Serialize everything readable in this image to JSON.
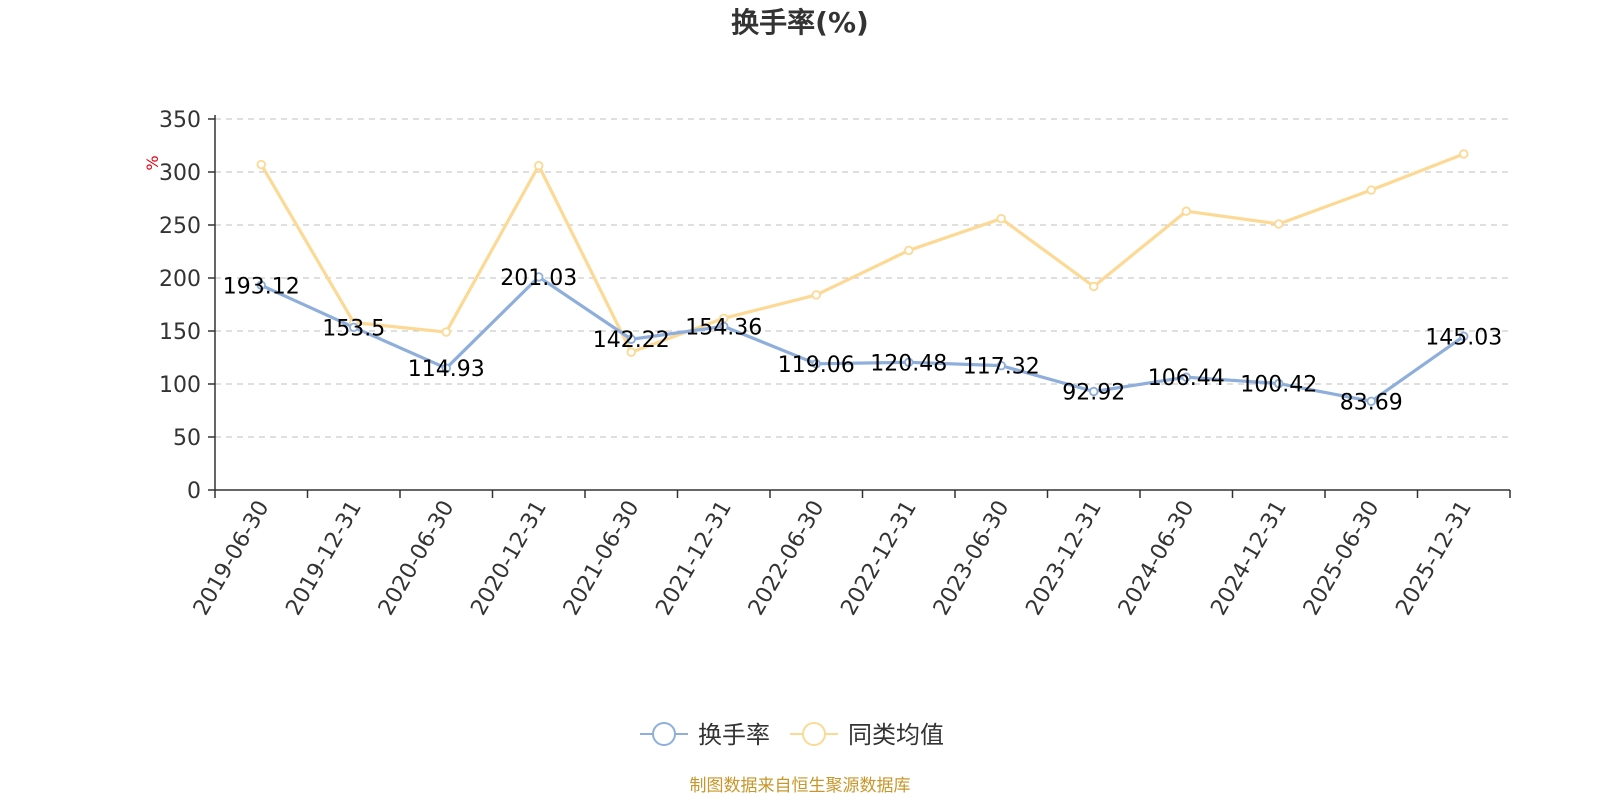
{
  "chart_data": {
    "type": "line",
    "title": "换手率(%)",
    "unit_label": "%",
    "categories": [
      "2019-06-30",
      "2019-12-31",
      "2020-06-30",
      "2020-12-31",
      "2021-06-30",
      "2021-12-31",
      "2022-06-30",
      "2022-12-31",
      "2023-06-30",
      "2023-12-31",
      "2024-06-30",
      "2024-12-31",
      "2025-06-30",
      "2025-12-31"
    ],
    "ylim": [
      0,
      350
    ],
    "yticks": [
      "0",
      "50",
      "100",
      "150",
      "200",
      "250",
      "300",
      "350"
    ],
    "grid": true,
    "legend_position": "bottom-center",
    "series": [
      {
        "name": "换手率",
        "color": "#8eaedb",
        "values": [
          193.12,
          153.5,
          114.93,
          201.03,
          142.22,
          154.36,
          119.06,
          120.48,
          117.32,
          92.92,
          106.44,
          100.42,
          83.69,
          145.03
        ],
        "labels": [
          "193.12",
          "153.5",
          "114.93",
          "201.03",
          "142.22",
          "154.36",
          "119.06",
          "120.48",
          "117.32",
          "92.92",
          "106.44",
          "100.42",
          "83.69",
          "145.03"
        ]
      },
      {
        "name": "同类均值",
        "color": "#fcd995",
        "values": [
          307,
          158,
          149,
          306,
          130,
          162,
          184,
          226,
          256,
          192,
          263,
          251,
          283,
          317
        ]
      }
    ],
    "source": "制图数据来自恒生聚源数据库"
  }
}
